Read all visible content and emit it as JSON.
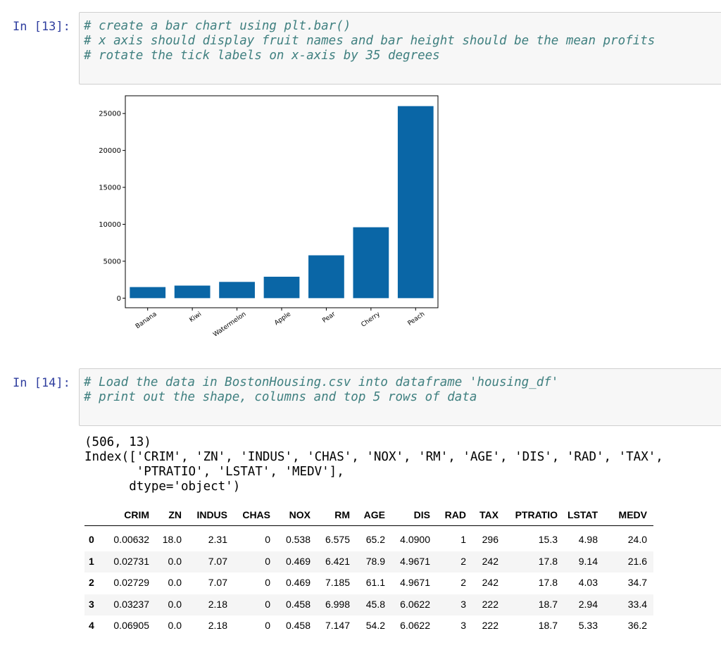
{
  "cells": [
    {
      "prompt": "In [13]:",
      "code": [
        "# create a bar chart using plt.bar()",
        "# x axis should display fruit names and bar height should be the mean profits",
        "# rotate the tick labels on x-axis by 35 degrees"
      ]
    },
    {
      "prompt": "In [14]:",
      "code": [
        "# Load the data in BostonHousing.csv into dataframe 'housing_df'",
        "# print out the shape, columns and top 5 rows of data"
      ]
    }
  ],
  "chart_data": {
    "type": "bar",
    "categories": [
      "Banana",
      "Kiwi",
      "Watermelon",
      "Apple",
      "Pear",
      "Cherry",
      "Peach"
    ],
    "values": [
      1500,
      1700,
      2200,
      2900,
      5800,
      9600,
      26000
    ],
    "color": "#0a66a6",
    "ylim": [
      -1300,
      27400
    ],
    "yticks": [
      0,
      5000,
      10000,
      15000,
      20000,
      25000
    ],
    "xtick_rotation": 35
  },
  "output": {
    "lines": [
      "(506, 13)",
      "Index(['CRIM', 'ZN', 'INDUS', 'CHAS', 'NOX', 'RM', 'AGE', 'DIS', 'RAD', 'TAX',",
      "       'PTRATIO', 'LSTAT', 'MEDV'],",
      "      dtype='object')"
    ]
  },
  "table": {
    "columns": [
      "CRIM",
      "ZN",
      "INDUS",
      "CHAS",
      "NOX",
      "RM",
      "AGE",
      "DIS",
      "RAD",
      "TAX",
      "PTRATIO",
      "LSTAT",
      "MEDV"
    ],
    "index": [
      0,
      1,
      2,
      3,
      4
    ],
    "rows": [
      [
        "0.00632",
        "18.0",
        "2.31",
        "0",
        "0.538",
        "6.575",
        "65.2",
        "4.0900",
        "1",
        "296",
        "15.3",
        "4.98",
        "24.0"
      ],
      [
        "0.02731",
        "0.0",
        "7.07",
        "0",
        "0.469",
        "6.421",
        "78.9",
        "4.9671",
        "2",
        "242",
        "17.8",
        "9.14",
        "21.6"
      ],
      [
        "0.02729",
        "0.0",
        "7.07",
        "0",
        "0.469",
        "7.185",
        "61.1",
        "4.9671",
        "2",
        "242",
        "17.8",
        "4.03",
        "34.7"
      ],
      [
        "0.03237",
        "0.0",
        "2.18",
        "0",
        "0.458",
        "6.998",
        "45.8",
        "6.0622",
        "3",
        "222",
        "18.7",
        "2.94",
        "33.4"
      ],
      [
        "0.06905",
        "0.0",
        "2.18",
        "0",
        "0.458",
        "7.147",
        "54.2",
        "6.0622",
        "3",
        "222",
        "18.7",
        "5.33",
        "36.2"
      ]
    ]
  }
}
